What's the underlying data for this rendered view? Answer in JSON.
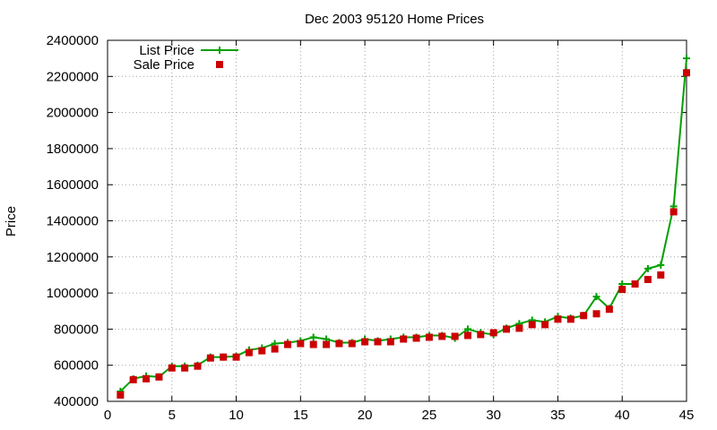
{
  "chart_data": {
    "type": "line",
    "title": "Dec 2003 95120 Home Prices",
    "xlabel": "",
    "ylabel": "Price",
    "xlim": [
      0,
      45
    ],
    "ylim": [
      400000,
      2400000
    ],
    "xticks": [
      0,
      5,
      10,
      15,
      20,
      25,
      30,
      35,
      40,
      45
    ],
    "yticks": [
      400000,
      600000,
      800000,
      1000000,
      1200000,
      1400000,
      1600000,
      1800000,
      2000000,
      2200000,
      2400000
    ],
    "grid": true,
    "legend_position": "top-left",
    "x": [
      1,
      2,
      3,
      4,
      5,
      6,
      7,
      8,
      9,
      10,
      11,
      12,
      13,
      14,
      15,
      16,
      17,
      18,
      19,
      20,
      21,
      22,
      23,
      24,
      25,
      26,
      27,
      28,
      29,
      30,
      31,
      32,
      33,
      34,
      35,
      36,
      37,
      38,
      39,
      40,
      41,
      42,
      43,
      44,
      45
    ],
    "series": [
      {
        "name": "List Price",
        "style": "line-plus",
        "color": "#00a000",
        "values": [
          455000,
          525000,
          540000,
          535000,
          595000,
          595000,
          600000,
          645000,
          645000,
          650000,
          685000,
          695000,
          720000,
          725000,
          735000,
          755000,
          745000,
          725000,
          725000,
          745000,
          735000,
          745000,
          755000,
          755000,
          765000,
          765000,
          750000,
          800000,
          780000,
          770000,
          805000,
          830000,
          850000,
          840000,
          870000,
          860000,
          875000,
          980000,
          915000,
          1050000,
          1050000,
          1135000,
          1155000,
          1480000,
          2300000
        ]
      },
      {
        "name": "Sale Price",
        "style": "points-square",
        "color": "#cc0000",
        "values": [
          435000,
          520000,
          525000,
          535000,
          585000,
          585000,
          595000,
          640000,
          645000,
          645000,
          670000,
          680000,
          690000,
          715000,
          720000,
          715000,
          715000,
          720000,
          720000,
          730000,
          730000,
          730000,
          745000,
          750000,
          755000,
          760000,
          760000,
          765000,
          770000,
          780000,
          800000,
          805000,
          825000,
          825000,
          855000,
          855000,
          875000,
          885000,
          910000,
          1020000,
          1050000,
          1075000,
          1100000,
          1450000,
          2220000
        ]
      }
    ]
  }
}
